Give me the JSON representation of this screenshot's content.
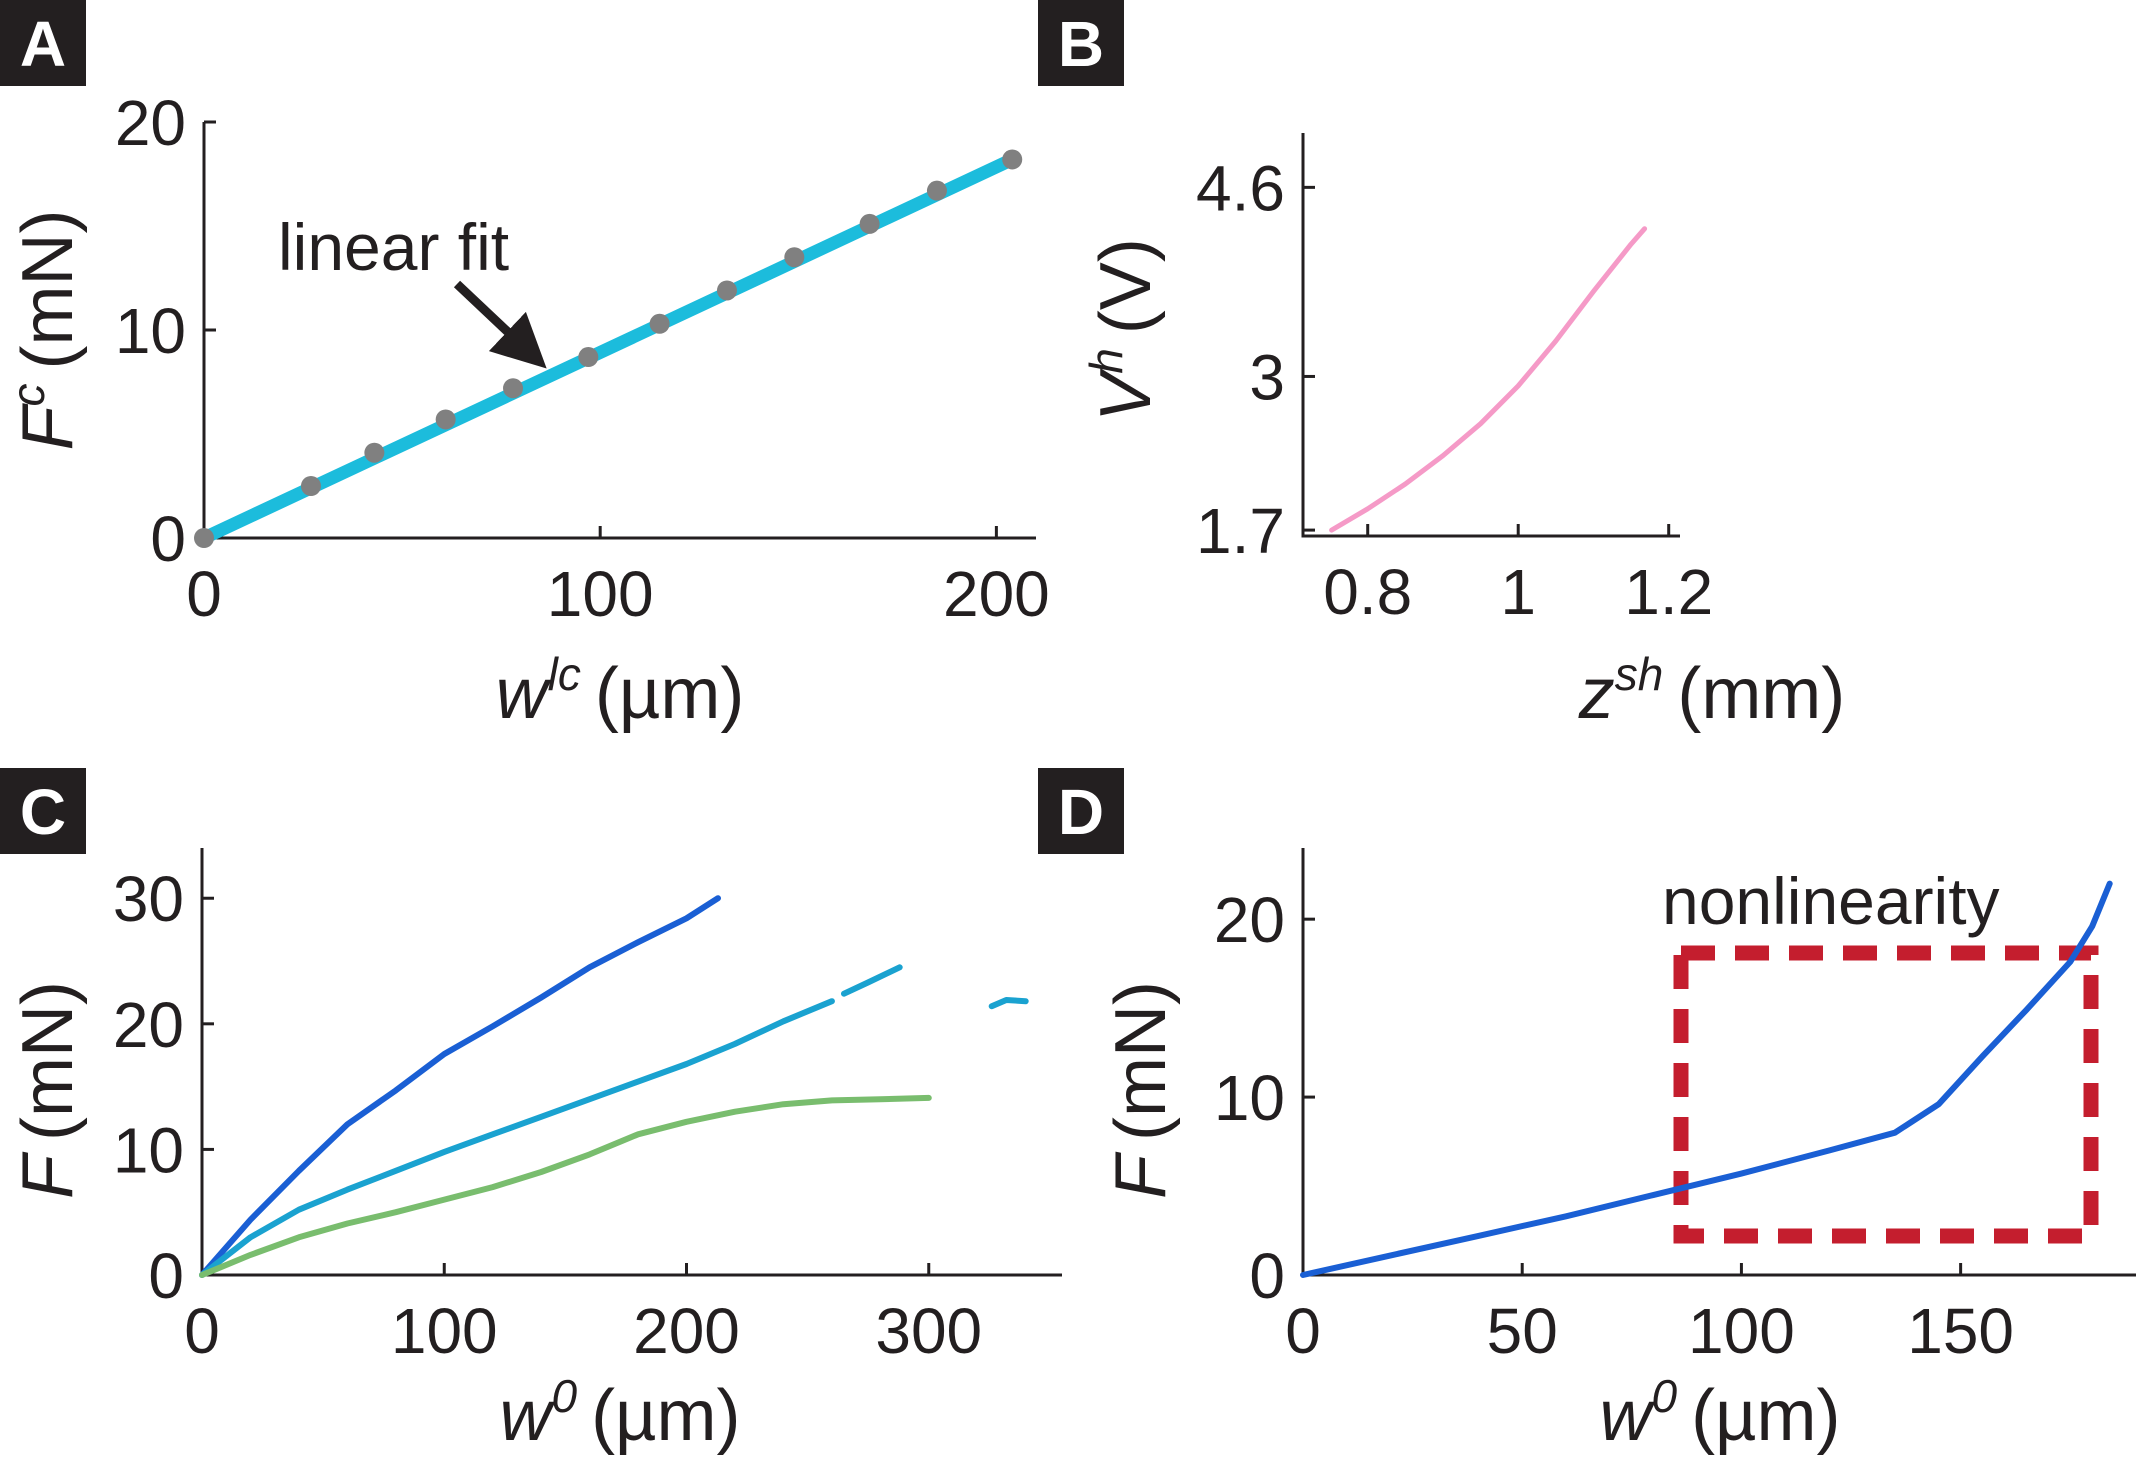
{
  "chart_data": [
    {
      "panel": "A",
      "type": "scatter",
      "xlabel": "w",
      "xlabel_sup": "lc",
      "xlabel_unit": "(µm)",
      "ylabel": "F",
      "ylabel_sup": "c",
      "ylabel_unit": "(mN)",
      "xlim": [
        0,
        210
      ],
      "ylim": [
        0,
        20
      ],
      "xticks": [
        "0",
        "100",
        "200"
      ],
      "xtick_values": [
        0,
        100,
        200
      ],
      "yticks": [
        "0",
        "10",
        "20"
      ],
      "ytick_values": [
        0,
        10,
        20
      ],
      "points": {
        "x": [
          0,
          27,
          43,
          61,
          78,
          97,
          115,
          132,
          149,
          168,
          185,
          204
        ],
        "y": [
          0,
          2.5,
          4.1,
          5.7,
          7.2,
          8.7,
          10.3,
          11.9,
          13.5,
          15.1,
          16.7,
          18.2
        ]
      },
      "fit": {
        "name": "linear fit",
        "x": [
          0,
          204
        ],
        "y": [
          0,
          18.2
        ]
      },
      "annotation": "linear fit",
      "colors": {
        "points": "#808080",
        "fit": "#1cbcdc"
      }
    },
    {
      "panel": "B",
      "type": "line",
      "xlabel": "z",
      "xlabel_sup": "sh",
      "xlabel_unit": "(mm)",
      "ylabel": "V",
      "ylabel_sup": "h",
      "ylabel_unit": "(V)",
      "xlim": [
        0.714,
        1.215
      ],
      "ylim": [
        1.65,
        5.06
      ],
      "xticks": [
        "0.8",
        "1",
        "1.2"
      ],
      "xtick_values": [
        0.8,
        1.0,
        1.2
      ],
      "yticks": [
        "1.7",
        "3",
        "4.6"
      ],
      "ytick_values": [
        1.7,
        3.0,
        4.6
      ],
      "series": [
        {
          "name": "Vh",
          "color": "#f59ac7",
          "x": [
            0.752,
            0.8,
            0.85,
            0.9,
            0.95,
            1.0,
            1.05,
            1.1,
            1.15,
            1.168
          ],
          "y": [
            1.7,
            1.88,
            2.09,
            2.33,
            2.6,
            2.92,
            3.3,
            3.72,
            4.12,
            4.25
          ]
        }
      ]
    },
    {
      "panel": "C",
      "type": "line",
      "xlabel": "w",
      "xlabel_sup": "0",
      "xlabel_unit": "(µm)",
      "ylabel": "F",
      "ylabel_unit": "(mN)",
      "xlim": [
        0,
        355
      ],
      "ylim": [
        0,
        34
      ],
      "xticks": [
        "0",
        "100",
        "200",
        "300"
      ],
      "xtick_values": [
        0,
        100,
        200,
        300
      ],
      "yticks": [
        "0",
        "10",
        "20",
        "30"
      ],
      "ytick_values": [
        0,
        10,
        20,
        30
      ],
      "series": [
        {
          "name": "series-1",
          "color": "#1a5fd4",
          "x": [
            0,
            20,
            40,
            60,
            80,
            100,
            120,
            140,
            160,
            180,
            200,
            213
          ],
          "y": [
            0,
            4.4,
            8.3,
            12.0,
            14.7,
            17.6,
            19.8,
            22.1,
            24.5,
            26.5,
            28.4,
            30.0
          ]
        },
        {
          "name": "series-2",
          "color": "#1aa2d0",
          "x": [
            0,
            20,
            40,
            60,
            80,
            100,
            120,
            140,
            160,
            180,
            200,
            220,
            240,
            260
          ],
          "y": [
            0,
            3.0,
            5.2,
            6.8,
            8.3,
            9.8,
            11.2,
            12.6,
            14.0,
            15.4,
            16.8,
            18.4,
            20.2,
            21.8
          ]
        },
        {
          "name": "series-2b",
          "color": "#1aa2d0",
          "x": [
            265,
            275,
            288
          ],
          "y": [
            22.4,
            23.3,
            24.5
          ]
        },
        {
          "name": "series-2c",
          "color": "#1aa2d0",
          "x": [
            326,
            332,
            340
          ],
          "y": [
            21.4,
            21.9,
            21.8
          ]
        },
        {
          "name": "series-3",
          "color": "#79bd6e",
          "x": [
            0,
            20,
            40,
            60,
            80,
            100,
            120,
            140,
            160,
            180,
            200,
            220,
            240,
            260,
            280,
            300
          ],
          "y": [
            0,
            1.6,
            3.0,
            4.1,
            5.0,
            6.0,
            7.0,
            8.2,
            9.6,
            11.2,
            12.2,
            13.0,
            13.6,
            13.9,
            14.0,
            14.1
          ]
        }
      ]
    },
    {
      "panel": "D",
      "type": "line",
      "xlabel": "w",
      "xlabel_sup": "0",
      "xlabel_unit": "(µm)",
      "ylabel": "F",
      "ylabel_unit": "(mN)",
      "xlim": [
        0,
        190
      ],
      "ylim": [
        0,
        24
      ],
      "xticks": [
        "0",
        "50",
        "100",
        "150"
      ],
      "xtick_values": [
        0,
        50,
        100,
        150
      ],
      "yticks": [
        "0",
        "10",
        "20"
      ],
      "ytick_values": [
        0,
        10,
        20
      ],
      "series": [
        {
          "name": "series-1",
          "color": "#1a5fd4",
          "x": [
            0,
            20,
            40,
            60,
            80,
            100,
            120,
            135,
            145,
            155,
            165,
            175,
            180,
            184
          ],
          "y": [
            0,
            1.1,
            2.2,
            3.3,
            4.5,
            5.7,
            7.0,
            8.0,
            9.6,
            12.3,
            14.9,
            17.6,
            19.6,
            22.0
          ]
        }
      ],
      "annotation": "nonlinearity",
      "highlight_color": "#c41e2e"
    }
  ],
  "panels": {
    "A": "A",
    "B": "B",
    "C": "C",
    "D": "D"
  }
}
